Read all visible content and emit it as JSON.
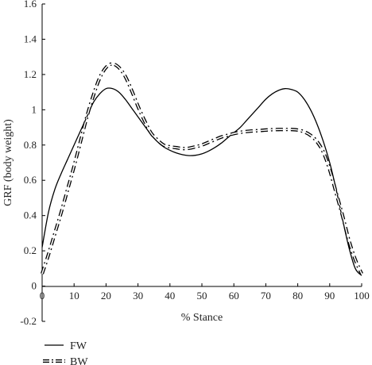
{
  "chart_data": {
    "type": "line",
    "title": "",
    "xlabel": "% Stance",
    "ylabel": "GRF (body weight)",
    "xlim": [
      0,
      100
    ],
    "ylim": [
      -0.2,
      1.6
    ],
    "xticks": [
      0,
      10,
      20,
      30,
      40,
      50,
      60,
      70,
      80,
      90,
      100
    ],
    "yticks": [
      -0.2,
      0,
      0.2,
      0.4,
      0.6,
      0.8,
      1,
      1.2,
      1.4,
      1.6
    ],
    "ytick_labels": [
      "-0.2",
      "0",
      "0.2",
      "0.4",
      "0.6",
      "0.8",
      "1",
      "1.2",
      "1.4",
      "1.6"
    ],
    "grid": false,
    "legend_position": "bottom-left",
    "series": [
      {
        "name": "FW",
        "style": "solid",
        "color": "#000000",
        "x": [
          0,
          2,
          4,
          6,
          8,
          10,
          12,
          14,
          16,
          18,
          20,
          22,
          24,
          26,
          28,
          30,
          32,
          34,
          36,
          38,
          40,
          42,
          44,
          46,
          48,
          50,
          52,
          54,
          56,
          58,
          60,
          62,
          64,
          66,
          68,
          70,
          72,
          74,
          76,
          78,
          80,
          82,
          84,
          86,
          88,
          90,
          92,
          94,
          96,
          98,
          100
        ],
        "y": [
          0.22,
          0.42,
          0.55,
          0.64,
          0.72,
          0.8,
          0.88,
          0.96,
          1.04,
          1.09,
          1.12,
          1.12,
          1.1,
          1.06,
          1.01,
          0.96,
          0.91,
          0.86,
          0.82,
          0.79,
          0.77,
          0.755,
          0.745,
          0.74,
          0.742,
          0.75,
          0.765,
          0.785,
          0.81,
          0.84,
          0.87,
          0.9,
          0.94,
          0.98,
          1.02,
          1.06,
          1.09,
          1.11,
          1.12,
          1.115,
          1.1,
          1.06,
          1.0,
          0.92,
          0.82,
          0.7,
          0.55,
          0.38,
          0.22,
          0.1,
          0.06
        ]
      },
      {
        "name": "BW",
        "style": "dash-dot",
        "color": "#000000",
        "x": [
          0,
          2,
          4,
          6,
          8,
          10,
          12,
          14,
          16,
          18,
          20,
          22,
          24,
          26,
          28,
          30,
          32,
          34,
          36,
          38,
          40,
          42,
          44,
          46,
          48,
          50,
          52,
          54,
          56,
          58,
          60,
          62,
          64,
          66,
          68,
          70,
          72,
          74,
          76,
          78,
          80,
          82,
          84,
          86,
          88,
          90,
          92,
          94,
          96,
          98,
          100
        ],
        "y": [
          0.07,
          0.18,
          0.3,
          0.42,
          0.55,
          0.68,
          0.82,
          0.96,
          1.08,
          1.18,
          1.24,
          1.26,
          1.24,
          1.19,
          1.11,
          1.02,
          0.94,
          0.87,
          0.83,
          0.8,
          0.79,
          0.785,
          0.78,
          0.782,
          0.79,
          0.8,
          0.815,
          0.83,
          0.845,
          0.855,
          0.865,
          0.872,
          0.877,
          0.88,
          0.882,
          0.885,
          0.887,
          0.888,
          0.888,
          0.888,
          0.885,
          0.875,
          0.855,
          0.82,
          0.76,
          0.66,
          0.53,
          0.4,
          0.26,
          0.15,
          0.07
        ]
      }
    ]
  }
}
